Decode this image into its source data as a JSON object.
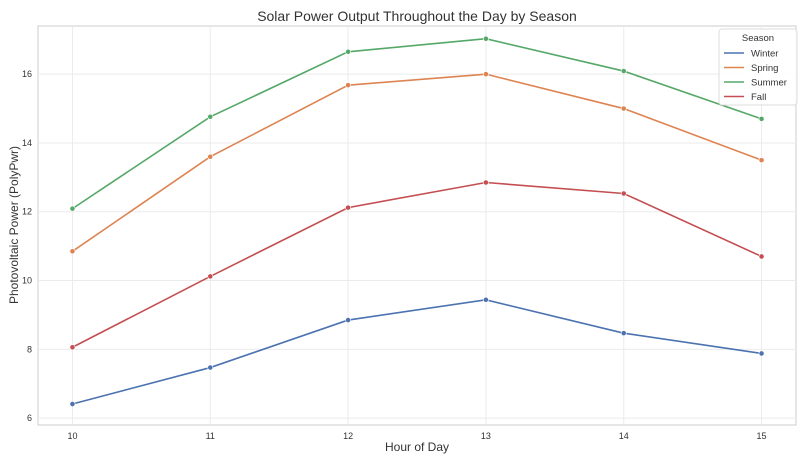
{
  "chart_data": {
    "type": "line",
    "title": "Solar Power Output Throughout the Day by Season",
    "xlabel": "Hour of Day",
    "ylabel": "Photovoltaic Power (PolyPwr)",
    "x": [
      10,
      11,
      12,
      13,
      14,
      15
    ],
    "xlim": [
      9.75,
      15.25
    ],
    "ylim": [
      5.8,
      17.4
    ],
    "yticks": [
      6,
      8,
      10,
      12,
      14,
      16
    ],
    "grid": true,
    "legend": {
      "title": "Season",
      "placement": "top-right"
    },
    "series": [
      {
        "name": "Winter",
        "color": "#4c72b0",
        "values": [
          6.41,
          7.47,
          8.85,
          9.44,
          8.47,
          7.88
        ]
      },
      {
        "name": "Spring",
        "color": "#dd8452",
        "values": [
          10.85,
          13.6,
          15.68,
          16.0,
          15.0,
          13.5
        ]
      },
      {
        "name": "Summer",
        "color": "#55a868",
        "values": [
          12.09,
          14.76,
          16.65,
          17.03,
          16.09,
          14.7
        ]
      },
      {
        "name": "Fall",
        "color": "#c44e52",
        "values": [
          8.06,
          10.12,
          12.12,
          12.85,
          12.53,
          10.7
        ]
      }
    ]
  }
}
